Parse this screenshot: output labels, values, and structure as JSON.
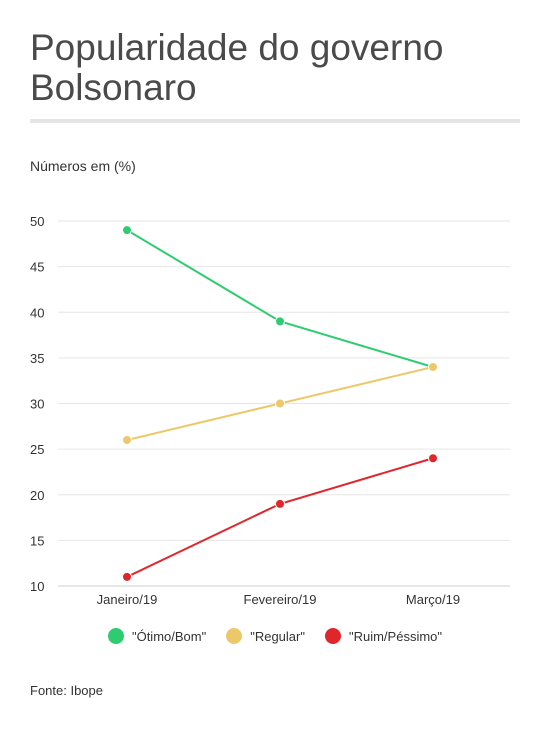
{
  "header": {
    "title": "Popularidade do governo Bolsonaro",
    "subtitle": "Números em (%)"
  },
  "footer": {
    "source": "Fonte: Ibope"
  },
  "chart_data": {
    "type": "line",
    "title": "Popularidade do governo Bolsonaro",
    "subtitle": "Números em (%)",
    "xlabel": "",
    "ylabel": "",
    "categories": [
      "Janeiro/19",
      "Fevereiro/19",
      "Março/19"
    ],
    "yticks": [
      10,
      15,
      20,
      25,
      30,
      35,
      40,
      45,
      50
    ],
    "ylim": [
      10,
      50
    ],
    "grid": true,
    "legend_position": "bottom-center",
    "series": [
      {
        "name": "\"Ótimo/Bom\"",
        "color": "#2ecc71",
        "values": [
          49,
          39,
          34
        ]
      },
      {
        "name": "\"Regular\"",
        "color": "#ecc86a",
        "values": [
          26,
          30,
          34
        ]
      },
      {
        "name": "\"Ruim/Péssimo\"",
        "color": "#e0262b",
        "values": [
          11,
          19,
          24
        ]
      }
    ]
  }
}
